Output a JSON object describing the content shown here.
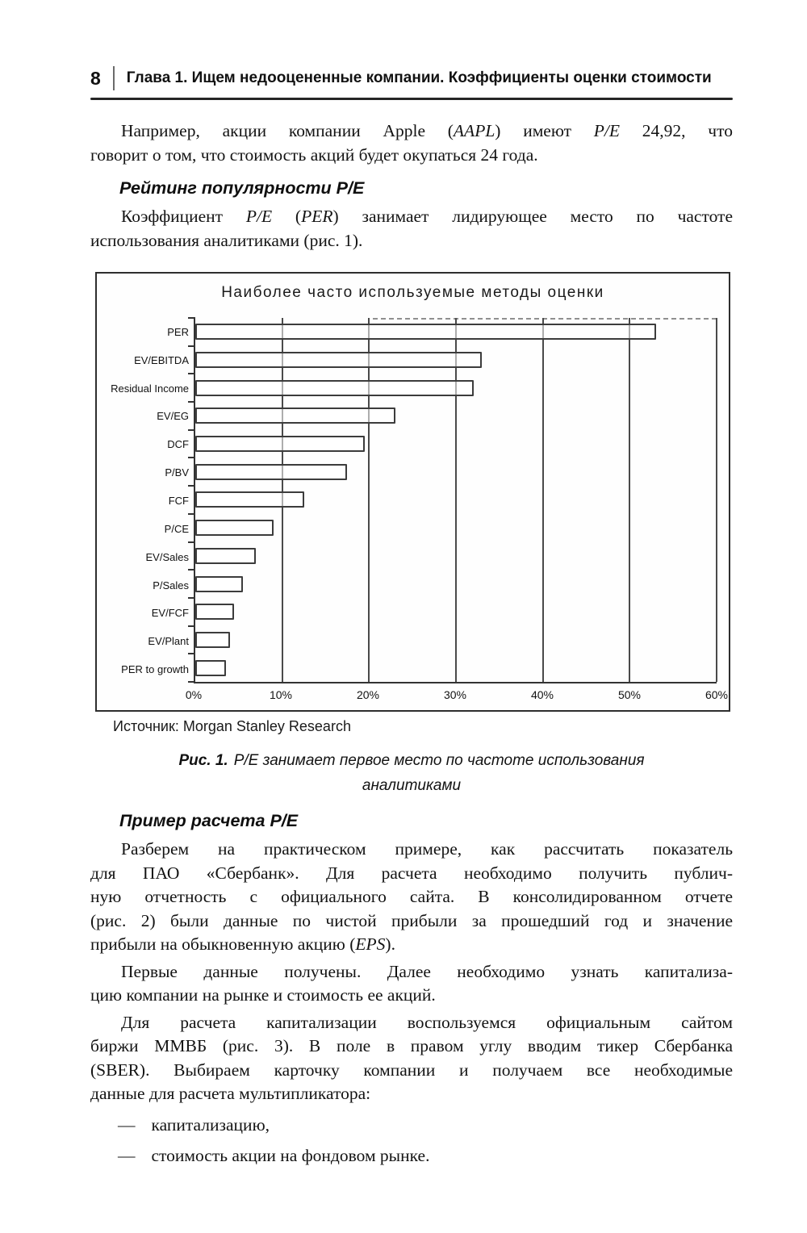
{
  "colors": {
    "paper": "#ffffff",
    "ink": "#161616"
  },
  "page": {
    "number": "8",
    "chapter_header": "Глава 1.  Ищем недооцененные компании. Коэффициенты оценки стоимости"
  },
  "content": {
    "p_intro": {
      "indent": true,
      "lines": [
        [
          "Например, акции компании Apple (",
          [
            "AAPL"
          ],
          ") имеют ",
          [
            "P/E"
          ],
          " 24,92, что"
        ],
        [
          "говорит о том, что стоимость акций будет окупаться 24 года."
        ]
      ]
    },
    "h_rating": "Рейтинг популярности P/E",
    "p_rating": {
      "indent": true,
      "lines": [
        [
          "Коэффициент ",
          [
            "P/E"
          ],
          " (",
          [
            "PER"
          ],
          ") занимает лидирующее место по частоте"
        ],
        [
          "использования аналитиками (рис. 1)."
        ]
      ]
    },
    "h_example": "Пример расчета P/E",
    "p_example1": {
      "indent": true,
      "lines": [
        [
          "Разберем на практическом примере, как рассчитать показатель"
        ],
        [
          "для ПАО «Сбербанк». Для расчета необходимо получить публич-"
        ],
        [
          "ную отчетность с официального сайта. В консолидированном отчете"
        ],
        [
          "(рис. 2) были данные по чистой прибыли за прошедший год и значение"
        ],
        [
          "прибыли на обыкновенную акцию (",
          [
            "EPS"
          ],
          ")."
        ]
      ]
    },
    "p_example2": {
      "indent": true,
      "lines": [
        [
          "Первые данные получены. Далее необходимо узнать капитализа-"
        ],
        [
          "цию компании на рынке и стоимость ее акций."
        ]
      ]
    },
    "p_example3": {
      "indent": true,
      "lines": [
        [
          "Для расчета капитализации воспользуемся официальным сайтом"
        ],
        [
          "биржи ММВБ (рис. 3). В поле в правом углу вводим тикер Сбербанка"
        ],
        [
          "(SBER). Выбираем карточку компании и получаем все необходимые"
        ],
        [
          "данные для расчета мультипликатора:"
        ]
      ]
    },
    "bullets": {
      "dash": "—",
      "items": [
        [
          [
            "капитализацию,"
          ]
        ],
        [
          [
            "стоимость акции на фондовом рынке."
          ]
        ]
      ]
    }
  },
  "figure": {
    "source_label": "Источник: Morgan Stanley Research",
    "caption_prefix": "Рис. 1.",
    "caption_lines": [
      "P/E занимает первое место по частоте использования",
      "аналитиками"
    ]
  },
  "chart_data": {
    "type": "bar",
    "orientation": "horizontal",
    "title": "Наиболее часто используемые методы оценки",
    "categories": [
      "PER",
      "EV/EBITDA",
      "Residual Income",
      "EV/EG",
      "DCF",
      "P/BV",
      "FCF",
      "P/CE",
      "EV/Sales",
      "P/Sales",
      "EV/FCF",
      "EV/Plant",
      "PER to growth"
    ],
    "values": [
      53,
      33,
      32,
      23,
      19.5,
      17.5,
      12.5,
      9,
      7,
      5.5,
      4.5,
      4,
      3.5
    ],
    "unit": "%",
    "x_ticks": [
      "0%",
      "10%",
      "20%",
      "30%",
      "40%",
      "50%",
      "60%"
    ],
    "xlim": [
      0,
      60
    ],
    "grid": "vertical-major",
    "legend": "none",
    "bar_style": {
      "fill": "transparent",
      "border": "#3c3c3c"
    },
    "source": "Morgan Stanley Research"
  }
}
